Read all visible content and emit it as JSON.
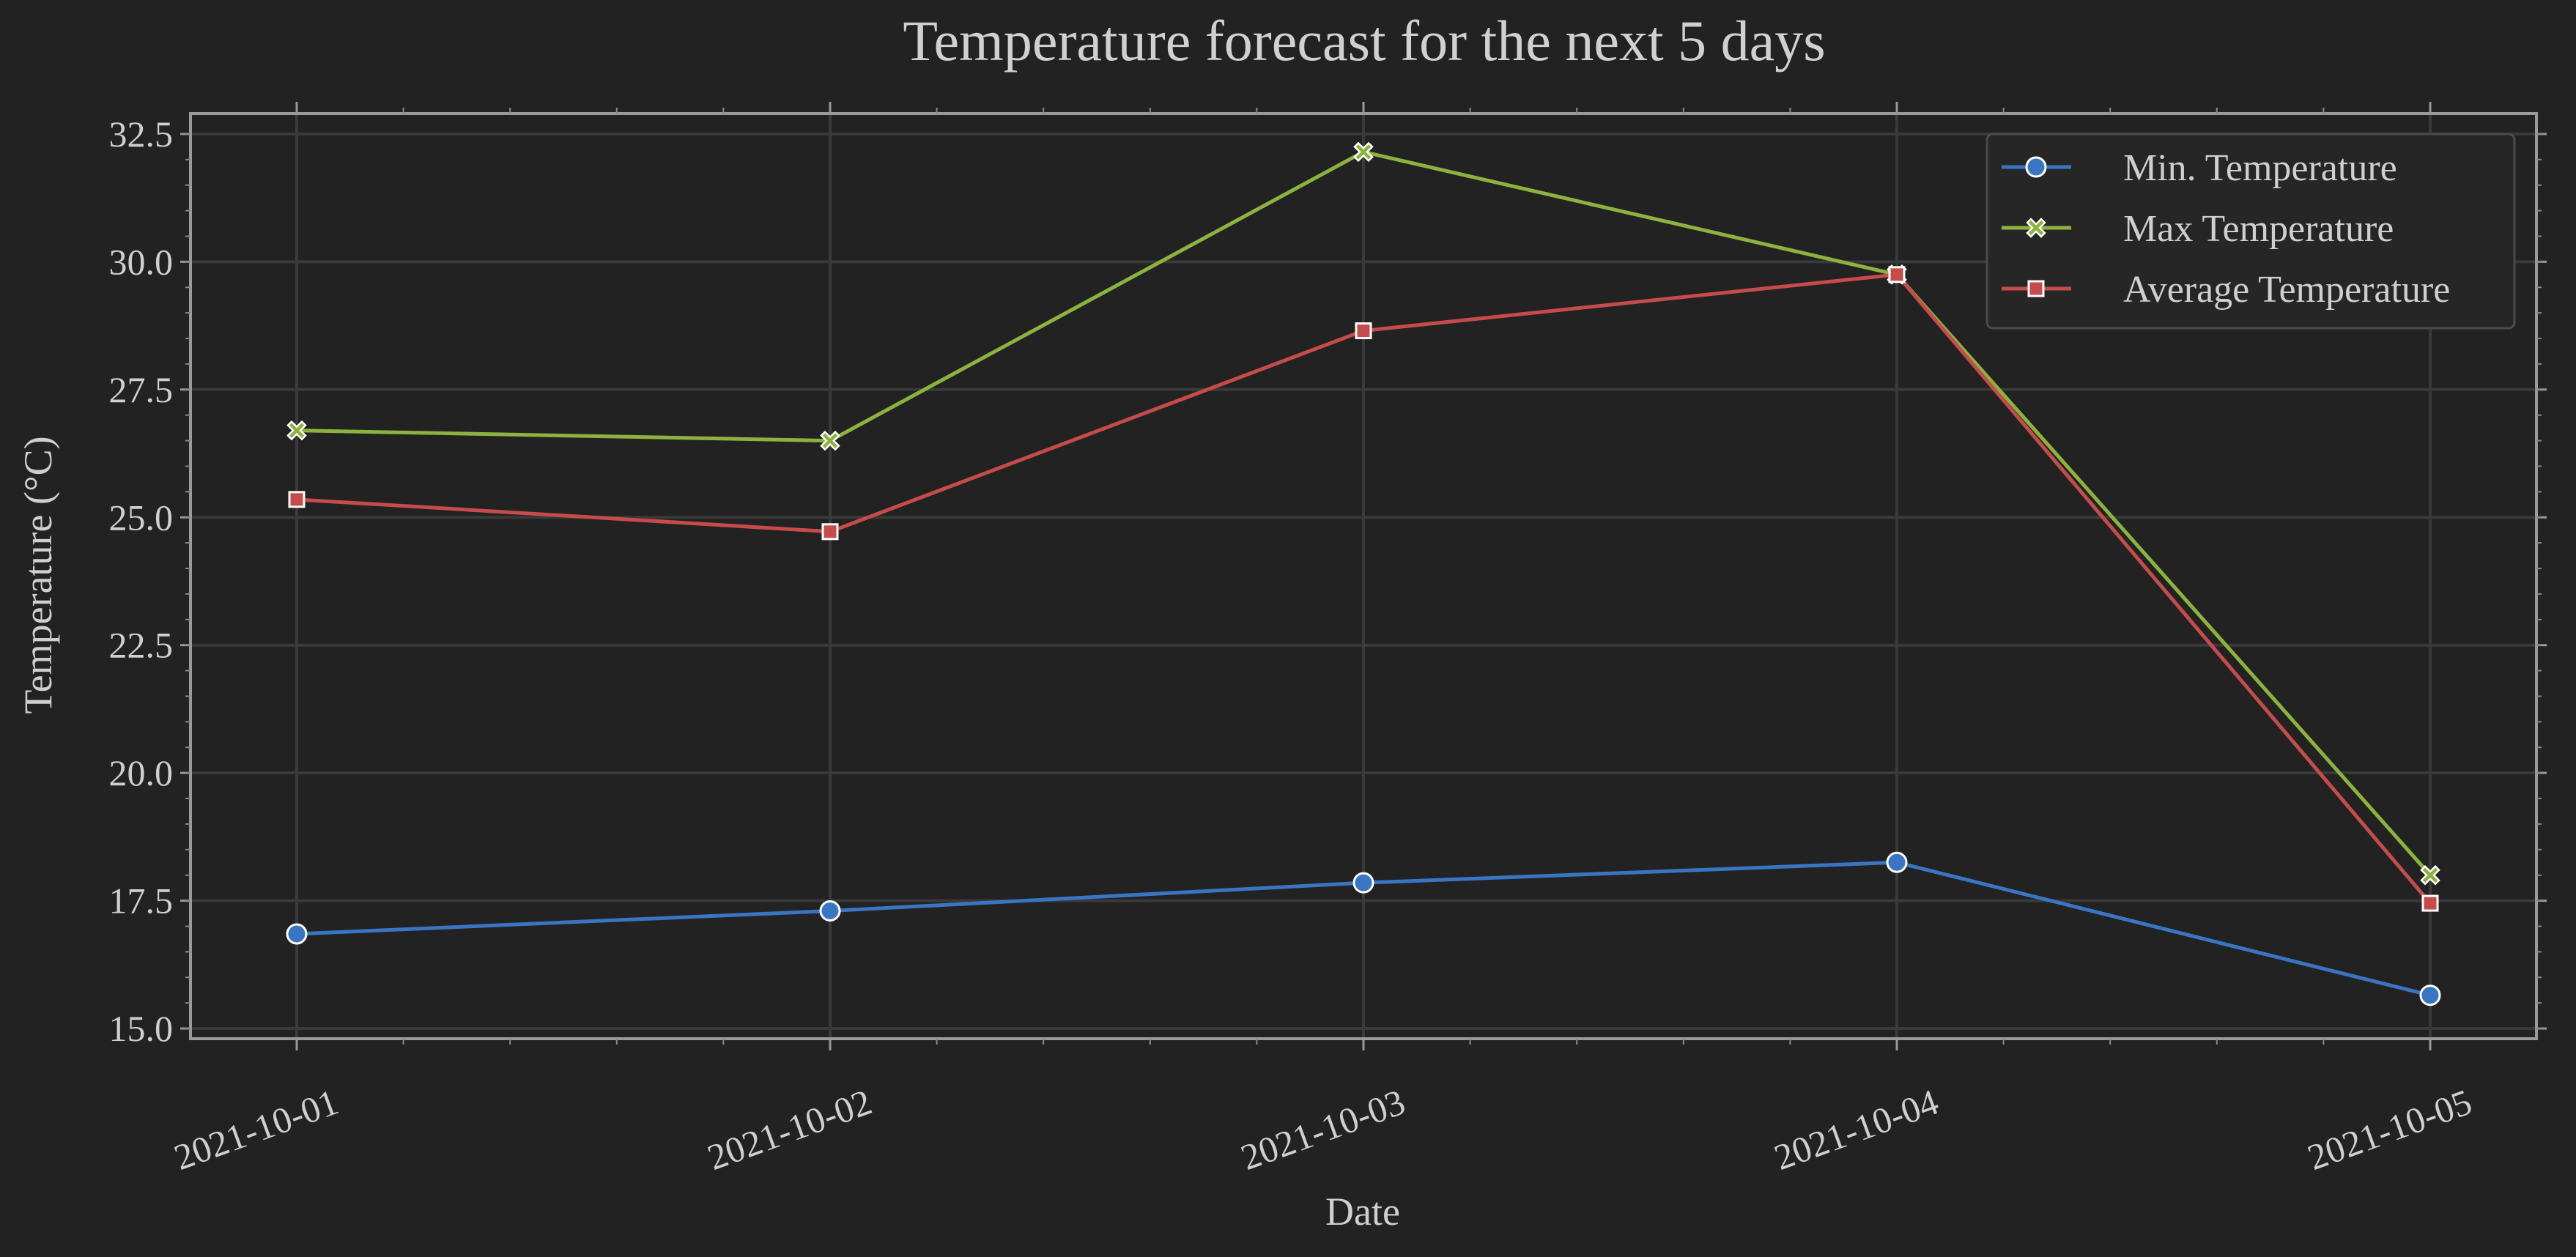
{
  "chart_data": {
    "type": "line",
    "title": "Temperature forecast for the next 5 days",
    "xlabel": "Date",
    "ylabel": "Temperature (°C)",
    "categories": [
      "2021-10-01",
      "2021-10-02",
      "2021-10-03",
      "2021-10-04",
      "2021-10-05"
    ],
    "ylim": [
      14.8,
      32.9
    ],
    "yticks": [
      "15.0",
      "17.5",
      "20.0",
      "22.5",
      "25.0",
      "27.5",
      "30.0",
      "32.5"
    ],
    "grid": true,
    "legend_position": "top-right",
    "series": [
      {
        "name": "Min. Temperature",
        "values": [
          16.85,
          17.3,
          17.85,
          18.25,
          15.65
        ],
        "color": "#3a75c4",
        "marker": "circle"
      },
      {
        "name": "Max Temperature",
        "values": [
          26.7,
          26.5,
          32.15,
          29.75,
          18.0
        ],
        "color": "#8db33f",
        "marker": "x"
      },
      {
        "name": "Average Temperature",
        "values": [
          25.35,
          24.72,
          28.65,
          29.75,
          17.45
        ],
        "color": "#c64b4b",
        "marker": "square"
      }
    ]
  }
}
